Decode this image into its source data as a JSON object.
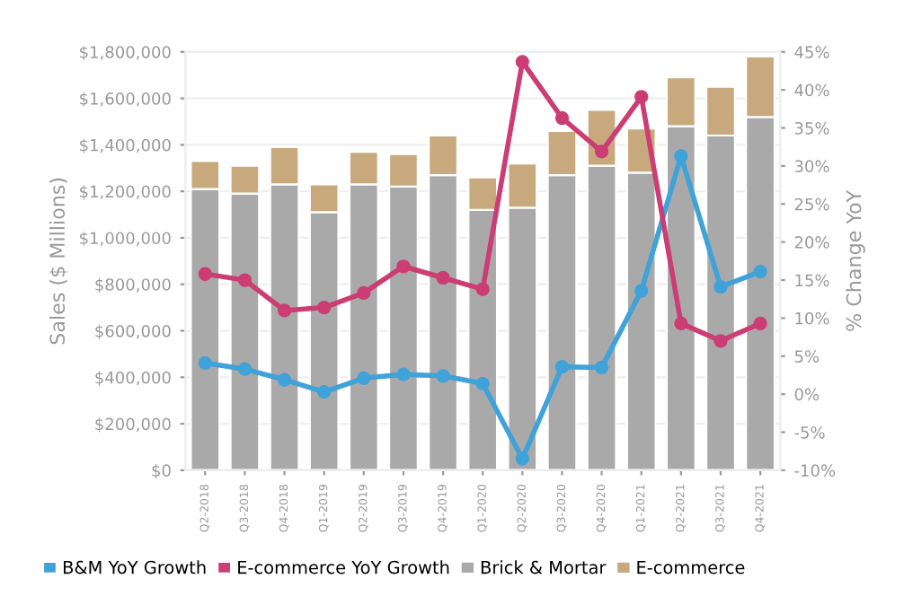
{
  "chart_data": {
    "type": "bar",
    "stacked": true,
    "ylabel": "Sales ($ Millions)",
    "y2label": "% Change YoY",
    "categories": [
      "Q2-2018",
      "Q3-2018",
      "Q4-2018",
      "Q1-2019",
      "Q2-2019",
      "Q3-2019",
      "Q4-2019",
      "Q1-2020",
      "Q2-2020",
      "Q3-2020",
      "Q4-2020",
      "Q1-2021",
      "Q2-2021",
      "Q3-2021",
      "Q4-2021"
    ],
    "series": [
      {
        "name": "B&M YoY Growth",
        "type": "line",
        "axis": "y2",
        "color": "#3fa2d8",
        "values": [
          4.1,
          3.3,
          1.9,
          0.3,
          2.1,
          2.6,
          2.4,
          1.4,
          -8.5,
          3.6,
          3.5,
          13.6,
          31.3,
          14.1,
          16.1
        ]
      },
      {
        "name": "E-commerce YoY Growth",
        "type": "line",
        "axis": "y2",
        "color": "#cc3d74",
        "values": [
          15.8,
          15.0,
          11.0,
          11.4,
          13.3,
          16.8,
          15.3,
          13.8,
          43.7,
          36.3,
          31.9,
          39.1,
          9.3,
          7.0,
          9.3
        ]
      },
      {
        "name": "Brick & Mortar",
        "color": "#a9a9a9",
        "values": [
          1210000,
          1190000,
          1230000,
          1110000,
          1230000,
          1220000,
          1270000,
          1120000,
          1130000,
          1270000,
          1310000,
          1280000,
          1480000,
          1440000,
          1520000
        ]
      },
      {
        "name": "E-commerce",
        "color": "#c8a97e",
        "values": [
          120000,
          120000,
          160000,
          120000,
          140000,
          140000,
          170000,
          140000,
          190000,
          190000,
          240000,
          190000,
          210000,
          210000,
          260000
        ]
      }
    ],
    "ylim": [
      0,
      1800000
    ],
    "yticks": [
      {
        "value": 0,
        "label": "$0"
      },
      {
        "value": 200000,
        "label": "$200,000"
      },
      {
        "value": 400000,
        "label": "$400,000"
      },
      {
        "value": 600000,
        "label": "$600,000"
      },
      {
        "value": 800000,
        "label": "$800,000"
      },
      {
        "value": 1000000,
        "label": "$1,000,000"
      },
      {
        "value": 1200000,
        "label": "$1,200,000"
      },
      {
        "value": 1400000,
        "label": "$1,400,000"
      },
      {
        "value": 1600000,
        "label": "$1,600,000"
      },
      {
        "value": 1800000,
        "label": "$1,800,000"
      }
    ],
    "y2lim": [
      -10,
      45
    ],
    "y2ticks": [
      {
        "value": -10,
        "label": "-10%"
      },
      {
        "value": -5,
        "label": "-5%"
      },
      {
        "value": 0,
        "label": "0%"
      },
      {
        "value": 5,
        "label": "5%"
      },
      {
        "value": 10,
        "label": "10%"
      },
      {
        "value": 15,
        "label": "15%"
      },
      {
        "value": 20,
        "label": "20%"
      },
      {
        "value": 25,
        "label": "25%"
      },
      {
        "value": 30,
        "label": "30%"
      },
      {
        "value": 35,
        "label": "35%"
      },
      {
        "value": 40,
        "label": "40%"
      },
      {
        "value": 45,
        "label": "45%"
      }
    ],
    "grid": "y",
    "legend": "bottom",
    "marker": "circle",
    "line_style": "solid"
  }
}
